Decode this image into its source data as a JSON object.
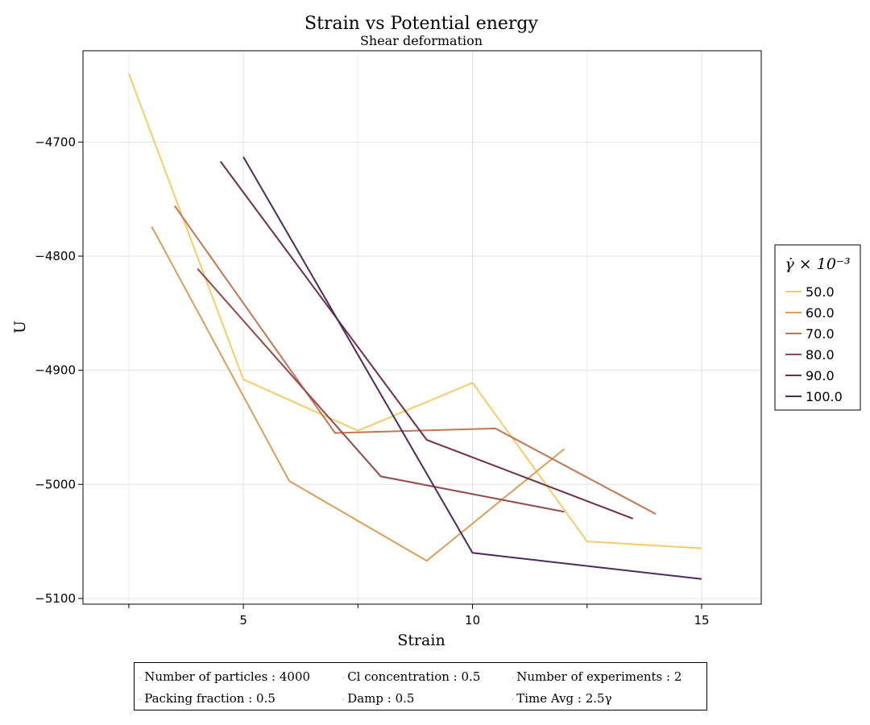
{
  "chart_data": {
    "type": "line",
    "title": "Strain vs Potential energy",
    "subtitle": "Shear deformation",
    "xlabel": "Strain",
    "ylabel": "U",
    "xlim": [
      1.5,
      16.3
    ],
    "ylim": [
      -5105,
      -4620
    ],
    "xticks": [
      5,
      10,
      15
    ],
    "xtick_labels": [
      "5",
      "10",
      "15"
    ],
    "yticks": [
      -4700,
      -4800,
      -4900,
      -5000,
      -5100
    ],
    "ytick_labels": [
      "−4700",
      "−4800",
      "−4900",
      "−5000",
      "−5100"
    ],
    "grid": true,
    "legend": {
      "title": "γ̇ × 10⁻³",
      "placement": "right"
    },
    "series": [
      {
        "name": "50.0",
        "color": "#f6cc68",
        "x": [
          2.5,
          5,
          7.5,
          10,
          12.5,
          15
        ],
        "y": [
          -4640,
          -4908,
          -4953,
          -4911,
          -5050,
          -5056
        ]
      },
      {
        "name": "60.0",
        "color": "#dc9e58",
        "x": [
          3,
          6,
          9,
          12
        ],
        "y": [
          -4774,
          -4997,
          -5067,
          -4969
        ]
      },
      {
        "name": "70.0",
        "color": "#c27752",
        "x": [
          3.5,
          7,
          10.5,
          14
        ],
        "y": [
          -4756,
          -4955,
          -4951,
          -5026
        ]
      },
      {
        "name": "80.0",
        "color": "#974848",
        "x": [
          4,
          8,
          12
        ],
        "y": [
          -4811,
          -4993,
          -5024
        ]
      },
      {
        "name": "90.0",
        "color": "#702f46",
        "x": [
          4.5,
          9,
          13.5
        ],
        "y": [
          -4717,
          -4961,
          -5030
        ]
      },
      {
        "name": "100.0",
        "color": "#4d2b5b",
        "x": [
          5,
          10,
          15
        ],
        "y": [
          -4713,
          -5060,
          -5083
        ]
      }
    ]
  },
  "footer": {
    "row1": [
      "Number of particles : 4000",
      "Cl concentration : 0.5",
      "Number of experiments : 2"
    ],
    "row2": [
      "Packing fraction : 0.5",
      "Damp : 0.5",
      "Time Avg : 2.5γ"
    ]
  }
}
